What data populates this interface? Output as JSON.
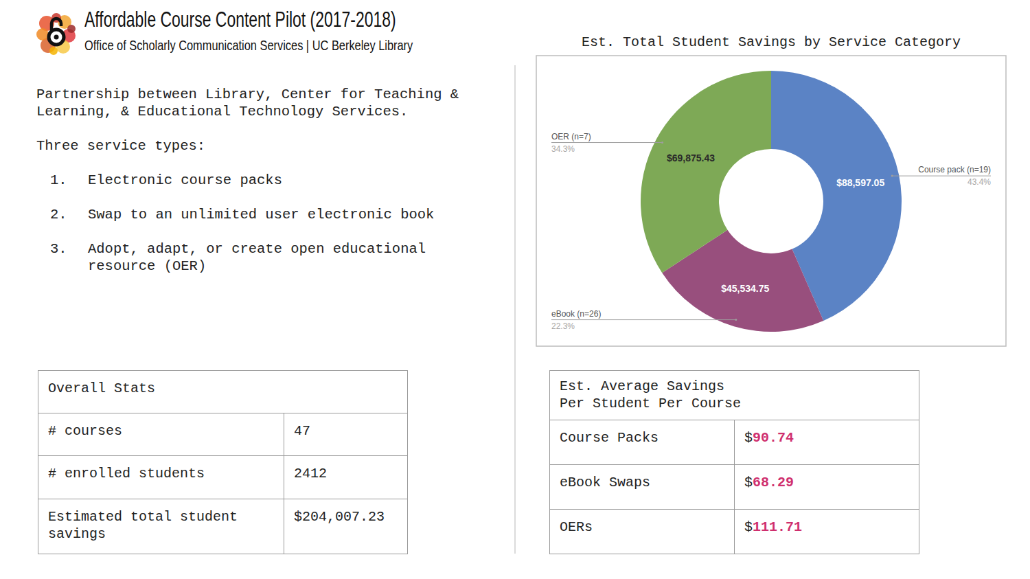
{
  "header": {
    "title": "Affordable Course Content Pilot (2017-2018)",
    "subtitle": "Office of Scholarly Communication Services | UC Berkeley Library"
  },
  "intro": {
    "text": "Partnership between Library, Center for Teaching & Learning, & Educational Technology Services.",
    "list_title": "Three service types:",
    "items": [
      {
        "number": "1.",
        "text": "Electronic course packs"
      },
      {
        "number": "2.",
        "text": "Swap to an unlimited user electronic book"
      },
      {
        "number": "3.",
        "text": "Adopt, adapt, or create open educational resource (OER)"
      }
    ]
  },
  "stats_table": {
    "title": "Overall Stats",
    "rows": [
      [
        "# courses",
        "47"
      ],
      [
        "# enrolled students",
        "2412"
      ],
      [
        "Estimated total student savings",
        "$204,007.23"
      ]
    ]
  },
  "average_table": {
    "title_lines": [
      "Est. Average Savings",
      "Per Student Per Course"
    ],
    "rows": [
      [
        "Course Packs",
        "$90.74"
      ],
      [
        "eBook Swaps",
        "$68.29"
      ],
      [
        "OERs",
        "$111.71"
      ]
    ]
  },
  "chart_data": {
    "type": "donut",
    "title": "Est. Total Student Savings by Service Category",
    "categories": [
      "Course pack (n=19)",
      "eBook (n=26)",
      "OER (n=7)"
    ],
    "values": [
      88597.05,
      45534.75,
      69875.43
    ],
    "value_labels": [
      "$88,597.05",
      "$45,534.75",
      "$69,875.43"
    ],
    "percentage_labels": [
      "43.4%",
      "22.3%",
      "34.3%"
    ],
    "colors": [
      "#5b83c5",
      "#984f7d",
      "#7ea956"
    ],
    "data_labels": true
  }
}
